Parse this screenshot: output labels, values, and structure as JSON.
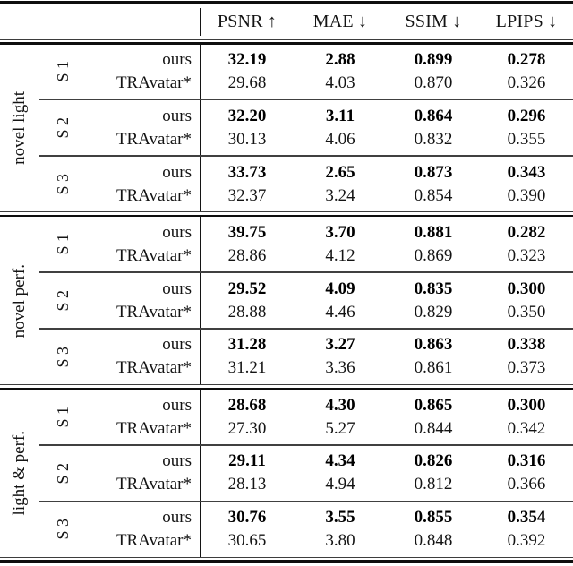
{
  "header": {
    "columns": [
      "PSNR ↑",
      "MAE ↓",
      "SSIM ↓",
      "LPIPS ↓"
    ]
  },
  "colors": {
    "rule_dark": "#0e0e0e",
    "rule_gray": "#404040",
    "text": "#141414",
    "background": "#ffffff"
  },
  "groups": [
    {
      "label": "novel light",
      "subs": [
        {
          "label": "S 1",
          "rows": [
            {
              "method": "ours",
              "values": [
                "32.19",
                "2.88",
                "0.899",
                "0.278"
              ]
            },
            {
              "method": "TRAvatar*",
              "values": [
                "29.68",
                "4.03",
                "0.870",
                "0.326"
              ]
            }
          ]
        },
        {
          "label": "S 2",
          "rows": [
            {
              "method": "ours",
              "values": [
                "32.20",
                "3.11",
                "0.864",
                "0.296"
              ]
            },
            {
              "method": "TRAvatar*",
              "values": [
                "30.13",
                "4.06",
                "0.832",
                "0.355"
              ]
            }
          ]
        },
        {
          "label": "S 3",
          "rows": [
            {
              "method": "ours",
              "values": [
                "33.73",
                "2.65",
                "0.873",
                "0.343"
              ]
            },
            {
              "method": "TRAvatar*",
              "values": [
                "32.37",
                "3.24",
                "0.854",
                "0.390"
              ]
            }
          ]
        }
      ]
    },
    {
      "label": "novel perf.",
      "subs": [
        {
          "label": "S 1",
          "rows": [
            {
              "method": "ours",
              "values": [
                "39.75",
                "3.70",
                "0.881",
                "0.282"
              ]
            },
            {
              "method": "TRAvatar*",
              "values": [
                "28.86",
                "4.12",
                "0.869",
                "0.323"
              ]
            }
          ]
        },
        {
          "label": "S 2",
          "rows": [
            {
              "method": "ours",
              "values": [
                "29.52",
                "4.09",
                "0.835",
                "0.300"
              ]
            },
            {
              "method": "TRAvatar*",
              "values": [
                "28.88",
                "4.46",
                "0.829",
                "0.350"
              ]
            }
          ]
        },
        {
          "label": "S 3",
          "rows": [
            {
              "method": "ours",
              "values": [
                "31.28",
                "3.27",
                "0.863",
                "0.338"
              ]
            },
            {
              "method": "TRAvatar*",
              "values": [
                "31.21",
                "3.36",
                "0.861",
                "0.373"
              ]
            }
          ]
        }
      ]
    },
    {
      "label": "light & perf.",
      "subs": [
        {
          "label": "S 1",
          "rows": [
            {
              "method": "ours",
              "values": [
                "28.68",
                "4.30",
                "0.865",
                "0.300"
              ]
            },
            {
              "method": "TRAvatar*",
              "values": [
                "27.30",
                "5.27",
                "0.844",
                "0.342"
              ]
            }
          ]
        },
        {
          "label": "S 2",
          "rows": [
            {
              "method": "ours",
              "values": [
                "29.11",
                "4.34",
                "0.826",
                "0.316"
              ]
            },
            {
              "method": "TRAvatar*",
              "values": [
                "28.13",
                "4.94",
                "0.812",
                "0.366"
              ]
            }
          ]
        },
        {
          "label": "S 3",
          "rows": [
            {
              "method": "ours",
              "values": [
                "30.76",
                "3.55",
                "0.855",
                "0.354"
              ]
            },
            {
              "method": "TRAvatar*",
              "values": [
                "30.65",
                "3.80",
                "0.848",
                "0.392"
              ]
            }
          ]
        }
      ]
    }
  ]
}
